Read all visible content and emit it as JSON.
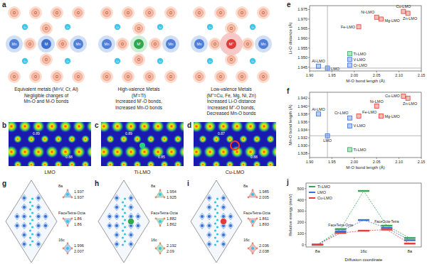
{
  "panels": {
    "a": {
      "label": "a",
      "atom_labels": {
        "oxygen": "O",
        "lithium": "Li",
        "manganese": "Mn"
      },
      "diagrams": [
        {
          "dopant": "M",
          "title_lines": [
            "Equivalent metals (M=V, Cr, Al)"
          ],
          "caption_lines": [
            "Negligible changes of",
            "Mn-O and M-O bonds"
          ]
        },
        {
          "dopant": "M'",
          "title_lines": [
            "High-valence Metals",
            "(M'=Ti)"
          ],
          "caption_lines": [
            "Increased M'-O bonds,",
            "Increased Mn-O bonds"
          ]
        },
        {
          "dopant": "M''",
          "title_lines": [
            "Low-valence Metals",
            "(M''=Cu, Fe, Mg, Ni, Zn)"
          ],
          "caption_lines": [
            "Increased Li-O distance",
            "Increased M''-O bonds,",
            "Decreased Mn-O bonds"
          ]
        }
      ]
    },
    "elf": [
      {
        "label": "b",
        "name": "LMO",
        "values": [
          0.89,
          0.88
        ]
      },
      {
        "label": "c",
        "name": "Ti-LMO",
        "values": [
          0.89,
          0.85
        ]
      },
      {
        "label": "d",
        "name": "Cu-LMO",
        "values": [
          0.87,
          0.88
        ]
      }
    ],
    "paths": [
      {
        "label": "g",
        "sites": [
          {
            "name": "8a",
            "bonds": [
              1.937,
              1.937
            ]
          },
          {
            "name": "FaceTetra-Octa",
            "bonds": [
              1.86,
              1.86
            ]
          },
          {
            "name": "16c",
            "bonds": [
              1.996,
              2.007
            ]
          }
        ]
      },
      {
        "label": "h",
        "sites": [
          {
            "name": "8a",
            "bonds": [
              1.954,
              1.925
            ]
          },
          {
            "name": "FaceTetra-Octa",
            "bonds": [
              1.882,
              1.862
            ]
          },
          {
            "name": "16c",
            "bonds": [
              2.192,
              2.09
            ]
          }
        ]
      },
      {
        "label": "i",
        "sites": [
          {
            "name": "8a",
            "bonds": [
              1.985,
              2.005
            ]
          },
          {
            "name": "FaceTetra-Octa",
            "bonds": [
              1.861,
              1.893
            ]
          },
          {
            "name": "16c",
            "bonds": [
              2.036,
              2.038
            ]
          }
        ]
      }
    ]
  },
  "chart_data": [
    {
      "type": "scatter",
      "title": "e",
      "x_label": "M-O bond length (Å)",
      "y_label": "Li-O distance (Å)",
      "point_labels": [
        "LMO",
        "Al-LMO",
        "V-LMO",
        "Cr-LMO",
        "Ti-LMO",
        "Fe-LMO",
        "Ni-LMO",
        "Mg-LMO",
        "Cu-LMO",
        "Zn-LMO"
      ],
      "x": [
        1.94,
        1.92,
        1.99,
        1.99,
        1.99,
        2.01,
        2.05,
        2.06,
        2.11,
        2.12
      ],
      "values": [
        1.9445,
        1.9455,
        1.949,
        1.946,
        1.952,
        1.966,
        1.971,
        1.97,
        1.974,
        1.973
      ],
      "colors": [
        "#3b6fd6",
        "#3b6fd6",
        "#3b6fd6",
        "#3b6fd6",
        "#3aa655",
        "#e0413a",
        "#e0413a",
        "#e0413a",
        "#e0413a",
        "#e0413a"
      ],
      "marker": "square",
      "reference": {
        "x": 1.94,
        "y": 1.9445
      },
      "xlim": [
        1.9,
        2.15
      ],
      "xticks": [
        {
          "value": 1.9,
          "label": "1.90"
        },
        1.95,
        {
          "value": 2,
          "label": "2.00"
        },
        2.05,
        {
          "value": 2.1,
          "label": "2.10"
        },
        2.15
      ],
      "ylim": [
        1.943,
        1.977
      ],
      "yticks": [
        1.945,
        {
          "value": 1.95,
          "label": "1.950"
        },
        1.955,
        {
          "value": 1.96,
          "label": "1.960"
        },
        1.965,
        {
          "value": 1.97,
          "label": "1.970"
        },
        1.975
      ]
    },
    {
      "type": "scatter",
      "title": "f",
      "x_label": "M-O bond length (Å)",
      "y_label": "Mn-O bond length (Å)",
      "point_labels": [
        "LMO",
        "Al-LMO",
        "V-LMO",
        "Cr-LMO",
        "Ti-LMO",
        "Fe-LMO",
        "Ni-LMO",
        "Mg-LMO",
        "Cu-LMO",
        "Zn-LMO"
      ],
      "x": [
        1.94,
        1.92,
        1.99,
        1.99,
        1.99,
        2.01,
        2.05,
        2.06,
        2.11,
        2.12
      ],
      "values": [
        1.9325,
        1.938,
        1.935,
        1.937,
        1.929,
        1.9375,
        1.94,
        1.9375,
        1.9425,
        1.942
      ],
      "colors": [
        "#3b6fd6",
        "#3b6fd6",
        "#3b6fd6",
        "#3b6fd6",
        "#3aa655",
        "#e0413a",
        "#e0413a",
        "#e0413a",
        "#e0413a",
        "#e0413a"
      ],
      "marker": "square",
      "reference": {
        "x": 1.94,
        "y": 1.9325
      },
      "xlim": [
        1.9,
        2.15
      ],
      "xticks": [
        {
          "value": 1.9,
          "label": "1.90"
        },
        1.95,
        {
          "value": 2,
          "label": "2.00"
        },
        2.05,
        {
          "value": 2.1,
          "label": "2.10"
        },
        2.15
      ],
      "ylim": [
        1.927,
        1.9435
      ],
      "yticks": [
        1.928,
        {
          "value": 1.93,
          "label": "1.930"
        },
        1.932,
        1.934,
        1.936,
        1.938,
        {
          "value": 1.94,
          "label": "1.940"
        },
        1.942
      ]
    },
    {
      "type": "line",
      "title": "j",
      "x_label": "Diffusion coordinate",
      "y_label": "Relative energy (meV)",
      "categories": [
        "8a",
        "FaceTetra-Octa",
        "16c",
        "FaceOcta-Tetra",
        "8a"
      ],
      "series": [
        {
          "name": "Ti-LMO",
          "color": "#3aa655",
          "values": [
            0,
            140,
            480,
            170,
            60
          ]
        },
        {
          "name": "LMO",
          "color": "#3b6fd6",
          "values": [
            0,
            120,
            220,
            150,
            40
          ]
        },
        {
          "name": "Cu-LMO",
          "color": "#e0413a",
          "values": [
            0,
            105,
            125,
            135,
            10
          ]
        }
      ],
      "ylim": [
        -20,
        550
      ],
      "yticks": [
        0,
        100,
        200,
        300,
        400,
        500
      ],
      "legend": "upper left",
      "line_style": "dashed",
      "marker": "level"
    }
  ]
}
